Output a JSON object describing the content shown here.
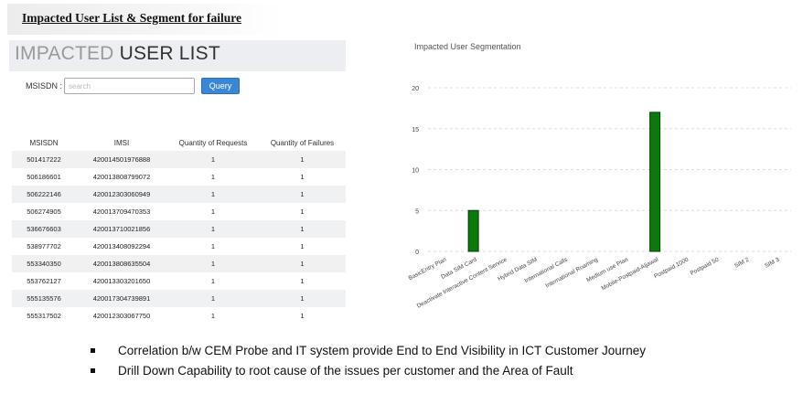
{
  "doc": {
    "heading": "Impacted User List & Segment  for failure"
  },
  "user_list": {
    "title_light": "IMPACTED ",
    "title_dark": "USER LIST",
    "msisdn_label": "MSISDN :",
    "search_placeholder": "search",
    "query_button": "Query",
    "columns": [
      "MSISDN",
      "IMSI",
      "Quantity of Requests",
      "Quantity of Failures"
    ],
    "rows": [
      [
        "501417222",
        "420014501976888",
        "1",
        "1"
      ],
      [
        "506186601",
        "420013808799072",
        "1",
        "1"
      ],
      [
        "506222146",
        "420012303060949",
        "1",
        "1"
      ],
      [
        "506274905",
        "420013709470353",
        "1",
        "1"
      ],
      [
        "536676603",
        "420013710021856",
        "1",
        "1"
      ],
      [
        "538977702",
        "420013408092294",
        "1",
        "1"
      ],
      [
        "553340350",
        "420013808635504",
        "1",
        "1"
      ],
      [
        "553762127",
        "420013303201650",
        "1",
        "1"
      ],
      [
        "555135576",
        "420017304739891",
        "1",
        "1"
      ],
      [
        "555317502",
        "420012303067750",
        "1",
        "1"
      ]
    ]
  },
  "chart_data": {
    "type": "bar",
    "title": "Impacted User Segmentation",
    "categories": [
      "BasicEntry Plan",
      "Data SIM Card",
      "Deactivate Interactive Content Service",
      "Hybrid Data SIM",
      "International Calls",
      "International Roaming",
      "Medium use Plan",
      "Mobile-Postpaid-Aljawal",
      "Postpaid 1000",
      "Postpaid 50",
      "SIM 2",
      "SIM 3"
    ],
    "values": [
      0,
      5,
      0,
      0,
      0,
      0,
      0,
      17,
      0,
      0,
      0,
      0
    ],
    "ylim": [
      0,
      20
    ],
    "yticks": [
      0,
      5,
      10,
      15,
      20
    ],
    "grid": true,
    "bar_color": "#0a7a0a"
  },
  "bullets": [
    "Correlation b/w CEM Probe and IT system provide End to End Visibility in ICT Customer Journey",
    "Drill Down Capability to root cause of the issues per customer and the Area of Fault"
  ]
}
